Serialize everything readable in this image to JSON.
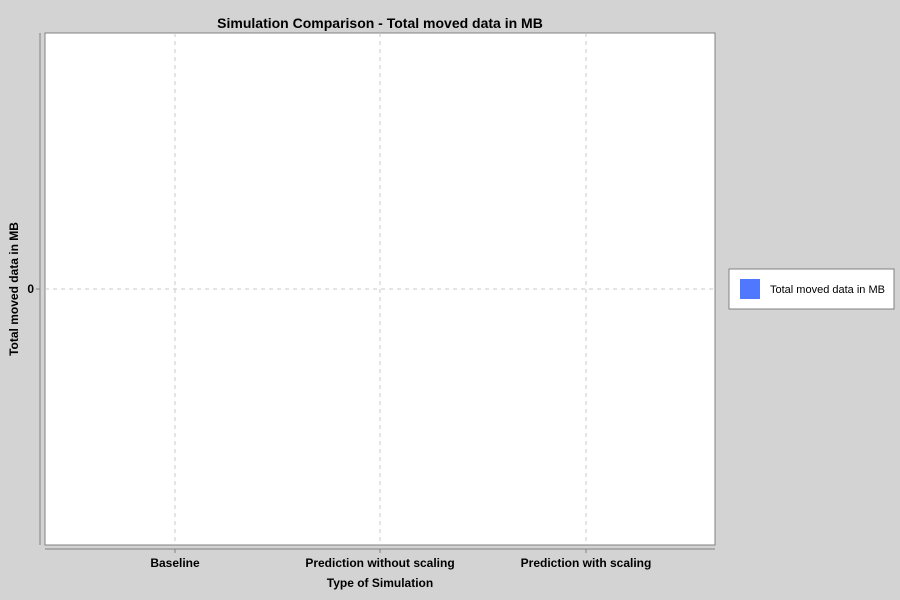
{
  "chart_data": {
    "type": "bar",
    "title": "Simulation Comparison - Total moved data in MB",
    "xlabel": "Type of Simulation",
    "ylabel": "Total moved data in MB",
    "categories": [
      "Baseline",
      "Prediction without scaling",
      "Prediction with scaling"
    ],
    "series": [
      {
        "name": "Total moved data in MB",
        "color": "#5078ff",
        "values": [
          0,
          0,
          0
        ]
      }
    ],
    "y_ticks": [
      "0"
    ],
    "ylim": [
      -1,
      1
    ],
    "grid": true,
    "legend_position": "right",
    "colors": {
      "background": "#d3d3d3",
      "plot_background": "#ffffff",
      "gridline": "#c8c8c8"
    }
  }
}
